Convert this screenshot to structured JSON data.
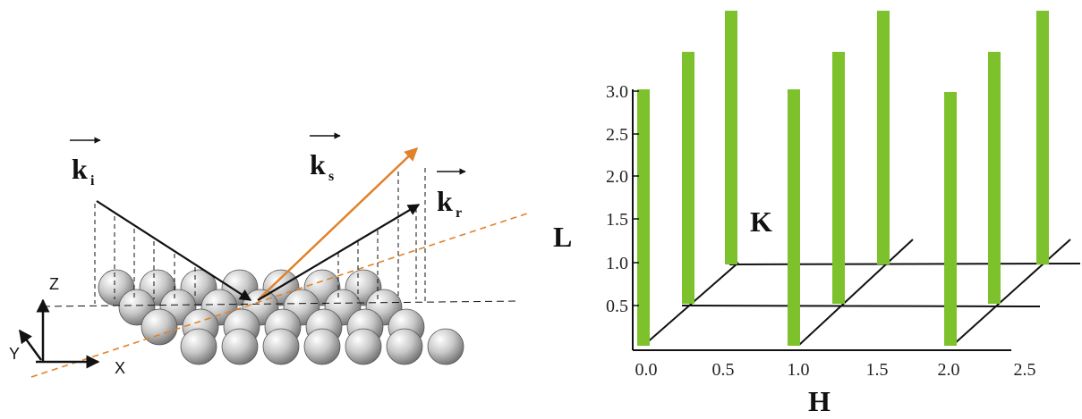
{
  "left": {
    "vectors": [
      {
        "label": "k",
        "subscript": "i"
      },
      {
        "label": "k",
        "subscript": "s"
      },
      {
        "label": "k",
        "subscript": "r"
      }
    ],
    "axes": [
      "Z",
      "Y",
      "X"
    ]
  },
  "right": {
    "l_axis": {
      "label": "L",
      "ticks": [
        "3.0",
        "2.5",
        "2.0",
        "1.5",
        "1.0",
        "0.5"
      ]
    },
    "k_axis": {
      "label": "K"
    },
    "h_axis": {
      "label": "H",
      "ticks": [
        "0.0",
        "0.5",
        "1.0",
        "1.5",
        "2.0",
        "2.5"
      ]
    }
  }
}
